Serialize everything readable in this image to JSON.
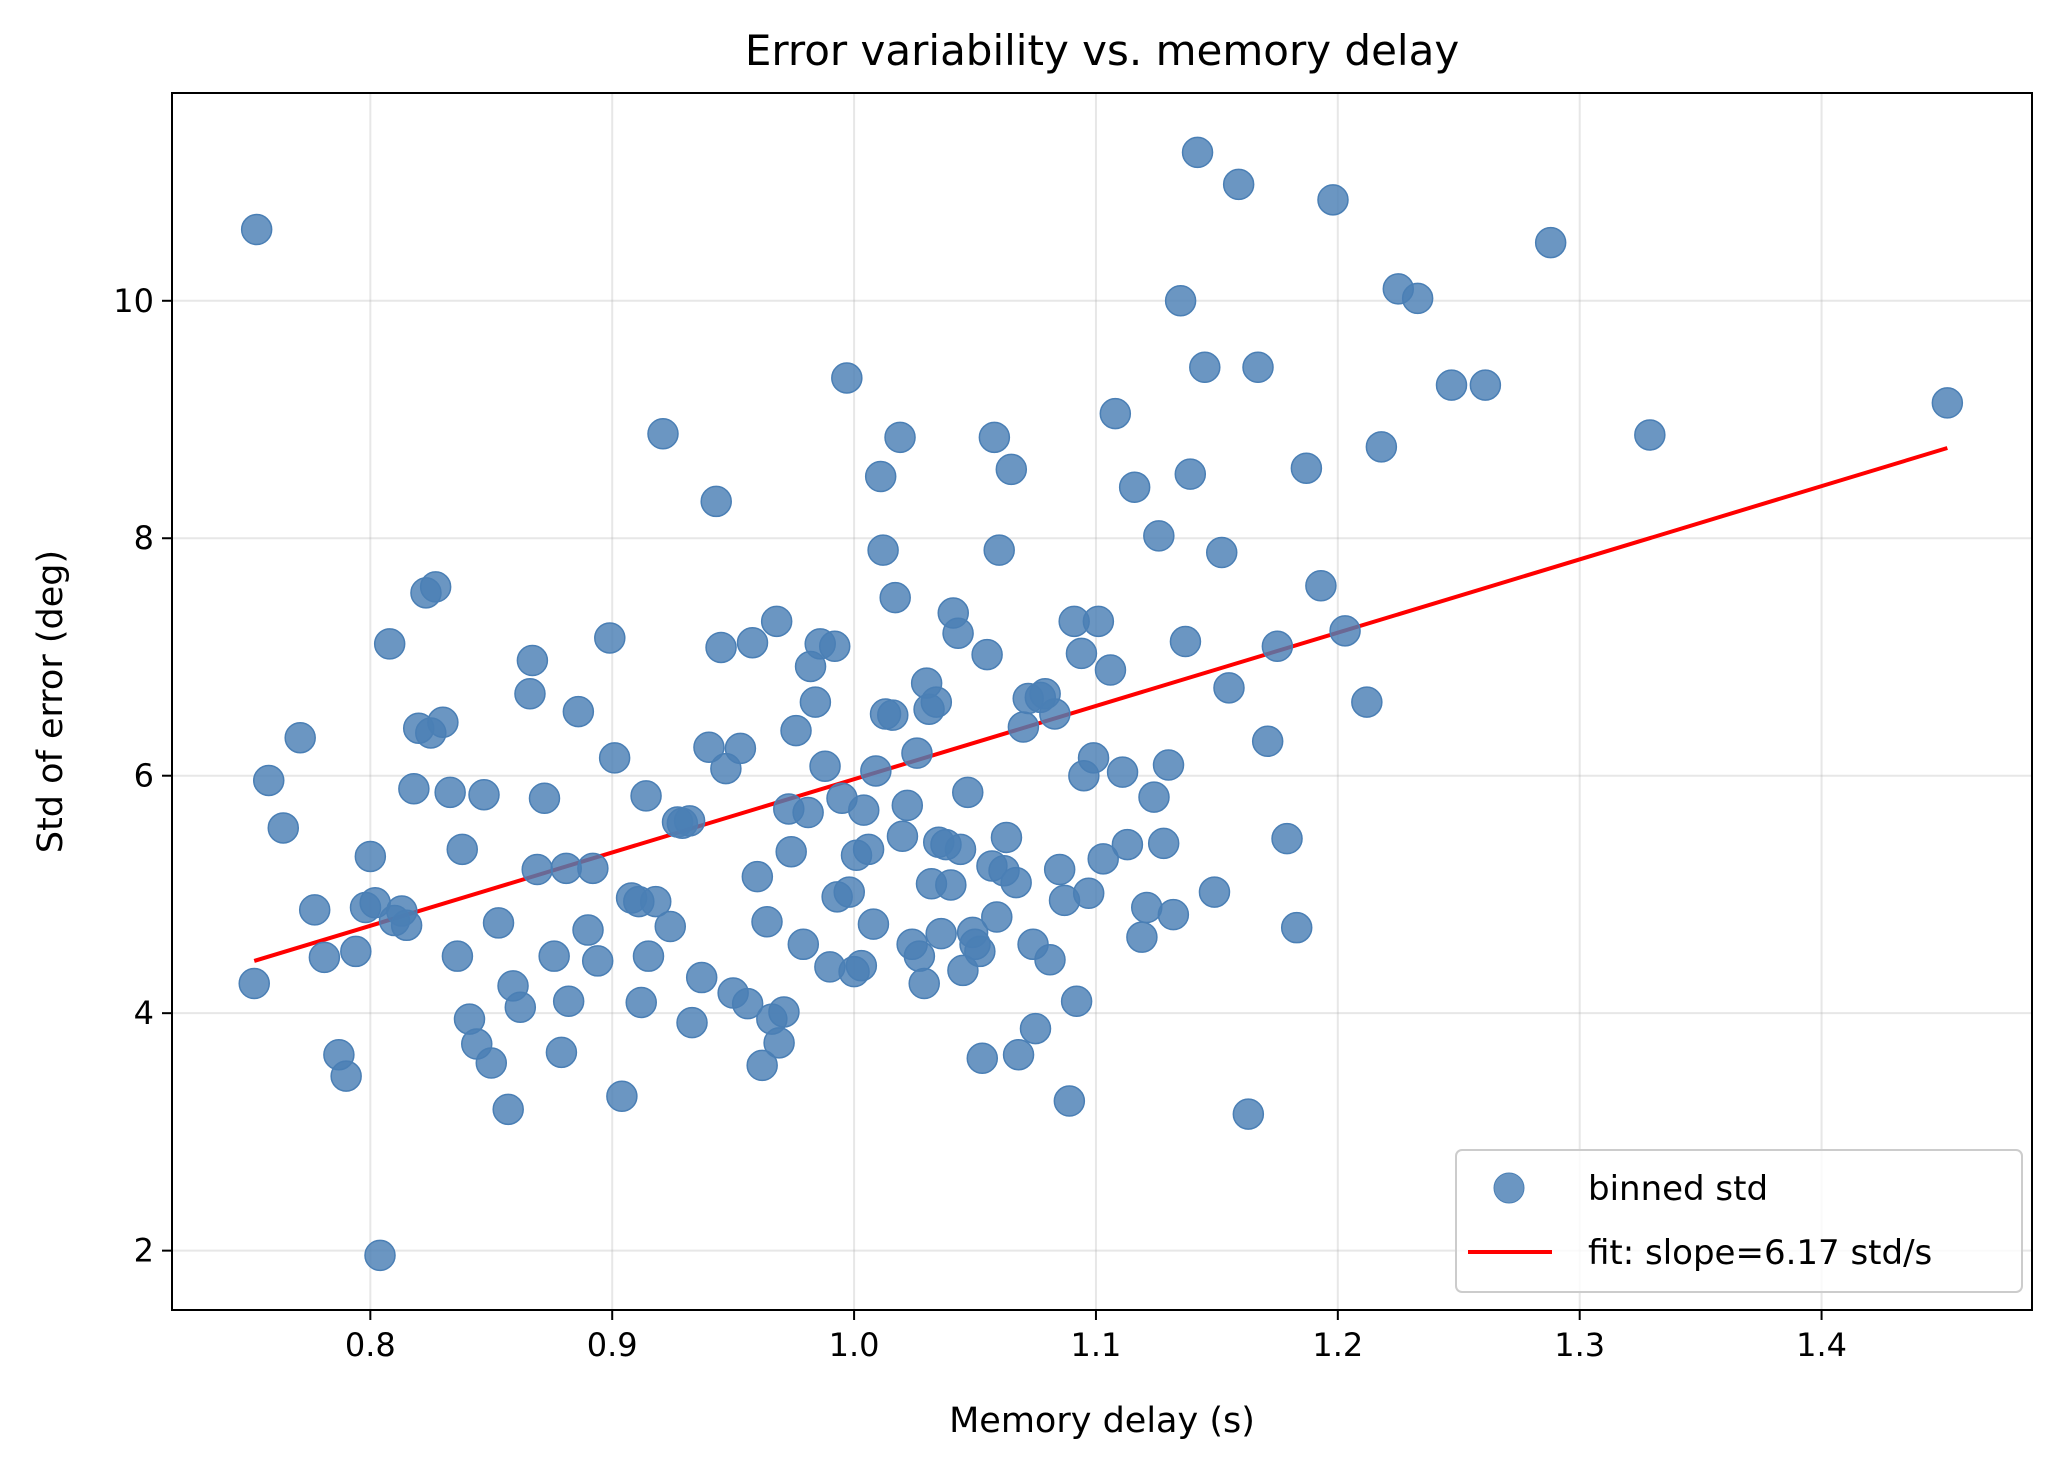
{
  "chart_data": {
    "type": "scatter",
    "title": "Error variability vs. memory delay",
    "xlabel": "Memory delay (s)",
    "ylabel": "Std of error (deg)",
    "xlim": [
      0.718,
      1.487
    ],
    "ylim": [
      1.5,
      11.75
    ],
    "xticks": [
      0.8,
      0.9,
      1.0,
      1.1,
      1.2,
      1.3,
      1.4
    ],
    "xtick_labels": [
      "0.8",
      "0.9",
      "1.0",
      "1.1",
      "1.2",
      "1.3",
      "1.4"
    ],
    "yticks": [
      2,
      4,
      6,
      8,
      10
    ],
    "ytick_labels": [
      "2",
      "4",
      "6",
      "8",
      "10"
    ],
    "grid": true,
    "legend_position": "lower-right",
    "colors": {
      "points": "#4a7fb5",
      "fit": "#ff0000"
    },
    "series": [
      {
        "name": "binned std",
        "kind": "scatter",
        "points": [
          [
            0.753,
            10.6
          ],
          [
            0.752,
            4.25
          ],
          [
            0.758,
            5.96
          ],
          [
            0.764,
            5.56
          ],
          [
            0.771,
            6.32
          ],
          [
            0.777,
            4.87
          ],
          [
            0.781,
            4.47
          ],
          [
            0.787,
            3.65
          ],
          [
            0.79,
            3.47
          ],
          [
            0.794,
            4.52
          ],
          [
            0.798,
            4.89
          ],
          [
            0.8,
            5.32
          ],
          [
            0.802,
            4.93
          ],
          [
            0.804,
            1.96
          ],
          [
            0.808,
            7.11
          ],
          [
            0.81,
            4.78
          ],
          [
            0.813,
            4.86
          ],
          [
            0.815,
            4.74
          ],
          [
            0.818,
            5.89
          ],
          [
            0.82,
            6.4
          ],
          [
            0.823,
            7.54
          ],
          [
            0.825,
            6.36
          ],
          [
            0.827,
            7.59
          ],
          [
            0.83,
            6.45
          ],
          [
            0.833,
            5.86
          ],
          [
            0.836,
            4.48
          ],
          [
            0.838,
            5.38
          ],
          [
            0.841,
            3.95
          ],
          [
            0.844,
            3.74
          ],
          [
            0.847,
            5.84
          ],
          [
            0.85,
            3.58
          ],
          [
            0.853,
            4.76
          ],
          [
            0.857,
            3.19
          ],
          [
            0.859,
            4.23
          ],
          [
            0.862,
            4.05
          ],
          [
            0.866,
            6.69
          ],
          [
            0.867,
            6.97
          ],
          [
            0.869,
            5.21
          ],
          [
            0.872,
            5.81
          ],
          [
            0.876,
            4.48
          ],
          [
            0.879,
            3.67
          ],
          [
            0.881,
            5.22
          ],
          [
            0.882,
            4.1
          ],
          [
            0.886,
            6.54
          ],
          [
            0.89,
            4.7
          ],
          [
            0.892,
            5.22
          ],
          [
            0.894,
            4.44
          ],
          [
            0.899,
            7.16
          ],
          [
            0.901,
            6.15
          ],
          [
            0.904,
            3.3
          ],
          [
            0.908,
            4.97
          ],
          [
            0.911,
            4.94
          ],
          [
            0.912,
            4.09
          ],
          [
            0.914,
            5.83
          ],
          [
            0.915,
            4.48
          ],
          [
            0.918,
            4.94
          ],
          [
            0.921,
            8.88
          ],
          [
            0.924,
            4.73
          ],
          [
            0.927,
            5.61
          ],
          [
            0.929,
            5.6
          ],
          [
            0.932,
            5.62
          ],
          [
            0.933,
            3.92
          ],
          [
            0.937,
            4.3
          ],
          [
            0.94,
            6.24
          ],
          [
            0.943,
            8.31
          ],
          [
            0.945,
            7.08
          ],
          [
            0.947,
            6.06
          ],
          [
            0.95,
            4.17
          ],
          [
            0.953,
            6.23
          ],
          [
            0.956,
            4.08
          ],
          [
            0.958,
            7.12
          ],
          [
            0.96,
            5.15
          ],
          [
            0.962,
            3.56
          ],
          [
            0.964,
            4.77
          ],
          [
            0.966,
            3.95
          ],
          [
            0.968,
            7.3
          ],
          [
            0.969,
            3.75
          ],
          [
            0.971,
            4.01
          ],
          [
            0.973,
            5.72
          ],
          [
            0.974,
            5.36
          ],
          [
            0.976,
            6.38
          ],
          [
            0.979,
            4.58
          ],
          [
            0.981,
            5.69
          ],
          [
            0.982,
            6.92
          ],
          [
            0.984,
            6.62
          ],
          [
            0.986,
            7.11
          ],
          [
            0.988,
            6.08
          ],
          [
            0.99,
            4.39
          ],
          [
            0.992,
            7.09
          ],
          [
            0.993,
            4.98
          ],
          [
            0.995,
            5.81
          ],
          [
            0.997,
            9.35
          ],
          [
            0.998,
            5.02
          ],
          [
            1.0,
            4.35
          ],
          [
            1.001,
            5.33
          ],
          [
            1.003,
            4.4
          ],
          [
            1.004,
            5.71
          ],
          [
            1.006,
            5.38
          ],
          [
            1.008,
            4.75
          ],
          [
            1.009,
            6.04
          ],
          [
            1.011,
            8.52
          ],
          [
            1.012,
            7.9
          ],
          [
            1.013,
            6.52
          ],
          [
            1.016,
            6.51
          ],
          [
            1.017,
            7.5
          ],
          [
            1.019,
            8.85
          ],
          [
            1.02,
            5.49
          ],
          [
            1.022,
            5.75
          ],
          [
            1.024,
            4.58
          ],
          [
            1.026,
            6.19
          ],
          [
            1.027,
            4.48
          ],
          [
            1.029,
            4.25
          ],
          [
            1.03,
            6.78
          ],
          [
            1.031,
            6.56
          ],
          [
            1.032,
            5.09
          ],
          [
            1.034,
            6.62
          ],
          [
            1.035,
            5.44
          ],
          [
            1.036,
            4.67
          ],
          [
            1.038,
            5.42
          ],
          [
            1.04,
            5.08
          ],
          [
            1.041,
            7.37
          ],
          [
            1.043,
            7.2
          ],
          [
            1.044,
            5.38
          ],
          [
            1.045,
            4.36
          ],
          [
            1.047,
            5.86
          ],
          [
            1.049,
            4.68
          ],
          [
            1.05,
            4.58
          ],
          [
            1.052,
            4.52
          ],
          [
            1.053,
            3.62
          ],
          [
            1.055,
            7.02
          ],
          [
            1.057,
            5.24
          ],
          [
            1.058,
            8.85
          ],
          [
            1.059,
            4.81
          ],
          [
            1.06,
            7.9
          ],
          [
            1.062,
            5.2
          ],
          [
            1.063,
            5.48
          ],
          [
            1.065,
            8.58
          ],
          [
            1.067,
            5.1
          ],
          [
            1.068,
            3.65
          ],
          [
            1.07,
            6.41
          ],
          [
            1.072,
            6.65
          ],
          [
            1.074,
            4.58
          ],
          [
            1.075,
            3.87
          ],
          [
            1.077,
            6.66
          ],
          [
            1.079,
            6.69
          ],
          [
            1.081,
            4.45
          ],
          [
            1.083,
            6.52
          ],
          [
            1.085,
            5.21
          ],
          [
            1.087,
            4.95
          ],
          [
            1.089,
            3.26
          ],
          [
            1.091,
            7.3
          ],
          [
            1.092,
            4.1
          ],
          [
            1.094,
            7.03
          ],
          [
            1.095,
            6.0
          ],
          [
            1.097,
            5.01
          ],
          [
            1.099,
            6.15
          ],
          [
            1.101,
            7.3
          ],
          [
            1.103,
            5.3
          ],
          [
            1.106,
            6.89
          ],
          [
            1.108,
            9.05
          ],
          [
            1.111,
            6.03
          ],
          [
            1.113,
            5.42
          ],
          [
            1.116,
            8.43
          ],
          [
            1.119,
            4.64
          ],
          [
            1.121,
            4.89
          ],
          [
            1.124,
            5.82
          ],
          [
            1.126,
            8.02
          ],
          [
            1.128,
            5.43
          ],
          [
            1.13,
            6.09
          ],
          [
            1.132,
            4.83
          ],
          [
            1.135,
            10.0
          ],
          [
            1.137,
            7.13
          ],
          [
            1.139,
            8.54
          ],
          [
            1.142,
            11.25
          ],
          [
            1.145,
            9.44
          ],
          [
            1.149,
            5.02
          ],
          [
            1.152,
            7.88
          ],
          [
            1.155,
            6.74
          ],
          [
            1.159,
            10.98
          ],
          [
            1.163,
            3.15
          ],
          [
            1.167,
            9.44
          ],
          [
            1.171,
            6.29
          ],
          [
            1.175,
            7.09
          ],
          [
            1.179,
            5.47
          ],
          [
            1.183,
            4.72
          ],
          [
            1.187,
            8.59
          ],
          [
            1.193,
            7.6
          ],
          [
            1.198,
            10.85
          ],
          [
            1.203,
            7.22
          ],
          [
            1.212,
            6.62
          ],
          [
            1.218,
            8.77
          ],
          [
            1.225,
            10.1
          ],
          [
            1.233,
            10.02
          ],
          [
            1.247,
            9.29
          ],
          [
            1.261,
            9.29
          ],
          [
            1.288,
            10.49
          ],
          [
            1.329,
            8.87
          ],
          [
            1.452,
            9.14
          ]
        ]
      },
      {
        "name": "fit: slope=6.17 std/s",
        "kind": "line",
        "slope": 6.17,
        "x": [
          0.752,
          1.452
        ],
        "y": [
          4.44,
          8.76
        ]
      }
    ]
  }
}
